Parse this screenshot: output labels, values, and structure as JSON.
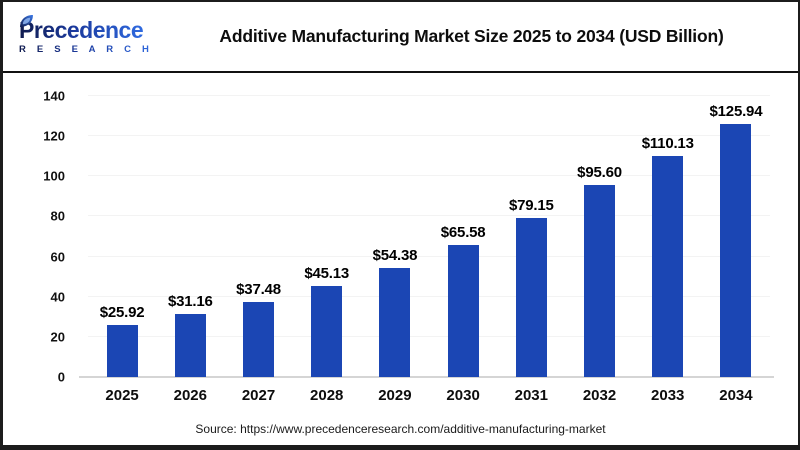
{
  "logo": {
    "brand": "Precedence",
    "sub": "R E S E A R C H"
  },
  "header": {
    "title": "Additive Manufacturing Market Size 2025 to 2034 (USD Billion)"
  },
  "chart_data": {
    "type": "bar",
    "title": "Additive Manufacturing Market Size 2025 to 2034 (USD Billion)",
    "categories": [
      "2025",
      "2026",
      "2027",
      "2028",
      "2029",
      "2030",
      "2031",
      "2032",
      "2033",
      "2034"
    ],
    "values": [
      25.92,
      31.16,
      37.48,
      45.13,
      54.38,
      65.58,
      79.15,
      95.6,
      110.13,
      125.94
    ],
    "value_labels": [
      "$25.92",
      "$31.16",
      "$37.48",
      "$45.13",
      "$54.38",
      "$65.58",
      "$79.15",
      "$95.60",
      "$110.13",
      "$125.94"
    ],
    "xlabel": "",
    "ylabel": "",
    "ylim": [
      0,
      140
    ],
    "yticks": [
      0,
      20,
      40,
      60,
      80,
      100,
      120,
      140
    ],
    "legend": "none",
    "grid": "faint-horizontal",
    "bar_color": "#1b46b4",
    "axis_line_color": "#d5d5d5",
    "label_color": "#000000"
  },
  "footer": {
    "source": "Source: https://www.precedenceresearch.com/additive-manufacturing-market"
  }
}
